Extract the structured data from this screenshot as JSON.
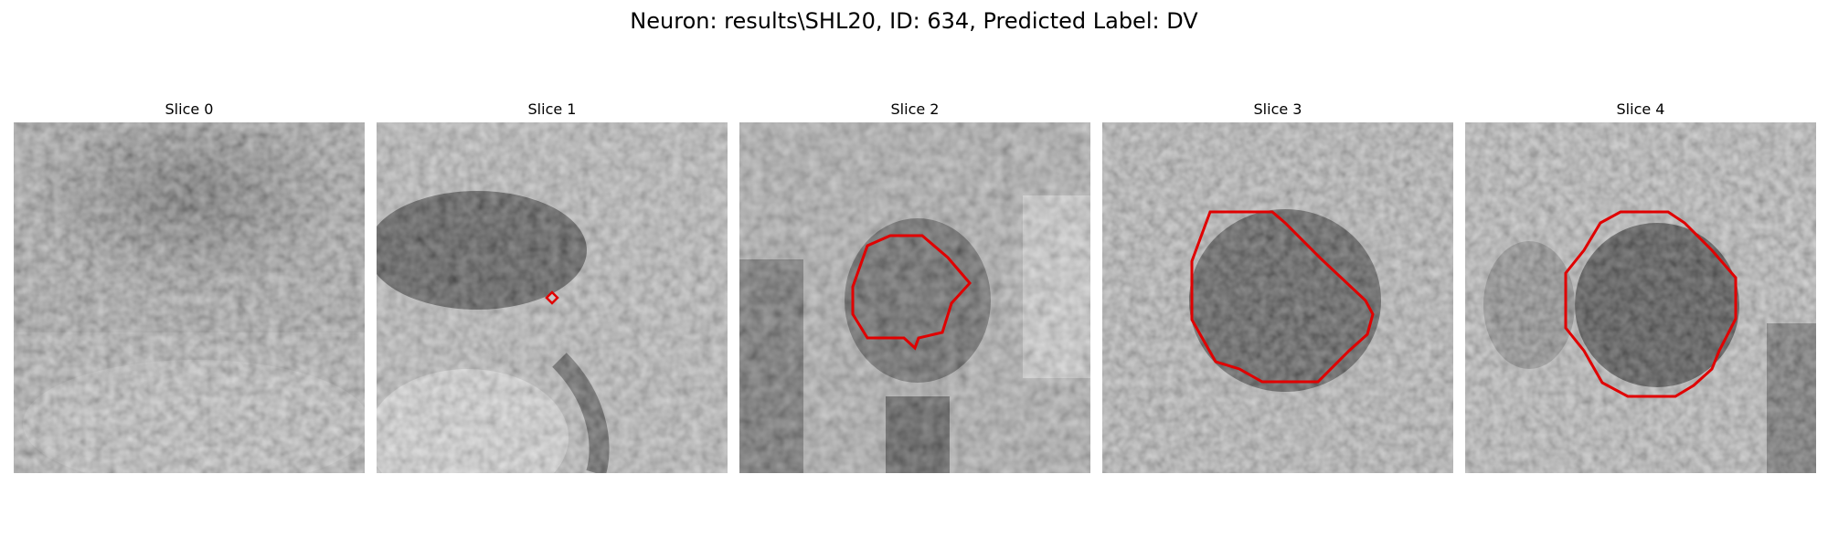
{
  "figure": {
    "title": "Neuron: results\\SHL20, ID: 634, Predicted Label: DV"
  },
  "colors": {
    "contour": "#e00000",
    "background": "#ffffff"
  },
  "slices": [
    {
      "title": "Slice 0",
      "has_contour": false
    },
    {
      "title": "Slice 1",
      "has_contour": true
    },
    {
      "title": "Slice 2",
      "has_contour": true
    },
    {
      "title": "Slice 3",
      "has_contour": true
    },
    {
      "title": "Slice 4",
      "has_contour": true
    }
  ]
}
